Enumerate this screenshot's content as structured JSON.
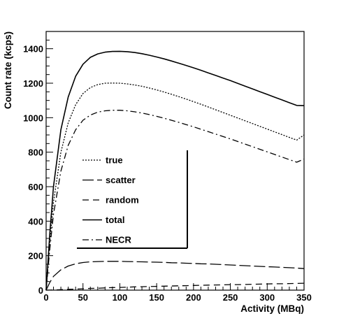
{
  "chart_data": {
    "type": "line",
    "xlabel": "Activity (MBq)",
    "ylabel": "Count rate (kcps)",
    "xlim": [
      0,
      350
    ],
    "ylim": [
      0,
      1500
    ],
    "xticks": [
      0,
      50,
      100,
      150,
      200,
      250,
      300,
      350
    ],
    "yticks": [
      0,
      200,
      400,
      600,
      800,
      1000,
      1200,
      1400
    ],
    "grid": false,
    "legend_position": "center-left",
    "x": [
      0,
      5,
      10,
      20,
      30,
      40,
      50,
      60,
      70,
      80,
      90,
      100,
      110,
      120,
      130,
      140,
      150,
      160,
      170,
      180,
      190,
      200,
      210,
      220,
      230,
      240,
      250,
      260,
      270,
      280,
      290,
      300,
      310,
      320,
      330,
      340,
      350
    ],
    "series": [
      {
        "name": "true",
        "style": "dotted",
        "color": "#000000",
        "values": [
          0,
          280,
          510,
          800,
          970,
          1075,
          1140,
          1175,
          1192,
          1200,
          1201,
          1200,
          1196,
          1190,
          1182,
          1172,
          1161,
          1149,
          1136,
          1122,
          1108,
          1093,
          1078,
          1062,
          1046,
          1030,
          1014,
          998,
          982,
          966,
          950,
          934,
          918,
          902,
          886,
          870,
          900
        ]
      },
      {
        "name": "scatter",
        "style": "long-dash",
        "color": "#000000",
        "values": [
          0,
          45,
          80,
          118,
          140,
          153,
          160,
          164,
          166,
          167,
          167,
          167,
          166,
          165,
          164,
          163,
          162,
          161,
          159,
          158,
          156,
          155,
          153,
          152,
          150,
          148,
          146,
          144,
          142,
          140,
          138,
          136,
          134,
          132,
          130,
          128,
          125
        ]
      },
      {
        "name": "random",
        "style": "dash",
        "color": "#000000",
        "values": [
          0,
          0.5,
          1,
          3,
          5,
          6,
          8,
          10,
          11,
          13,
          15,
          16,
          17,
          19,
          20,
          21,
          22,
          23,
          24,
          25,
          26,
          27,
          28,
          29,
          30,
          31,
          32,
          32,
          33,
          34,
          35,
          36,
          37,
          37,
          38,
          39,
          40
        ]
      },
      {
        "name": "total",
        "style": "solid",
        "color": "#000000",
        "values": [
          0,
          330,
          600,
          930,
          1120,
          1240,
          1310,
          1350,
          1370,
          1380,
          1384,
          1385,
          1383,
          1378,
          1371,
          1362,
          1352,
          1341,
          1329,
          1316,
          1303,
          1289,
          1275,
          1260,
          1245,
          1230,
          1215,
          1199,
          1183,
          1167,
          1151,
          1135,
          1119,
          1103,
          1087,
          1071,
          1070
        ]
      },
      {
        "name": "NECR",
        "style": "dash-dot",
        "color": "#000000",
        "values": [
          0,
          240,
          440,
          690,
          840,
          930,
          985,
          1015,
          1032,
          1040,
          1043,
          1043,
          1040,
          1034,
          1027,
          1018,
          1008,
          997,
          985,
          973,
          960,
          947,
          933,
          919,
          905,
          891,
          877,
          862,
          847,
          832,
          817,
          802,
          787,
          772,
          757,
          742,
          760
        ]
      }
    ]
  }
}
